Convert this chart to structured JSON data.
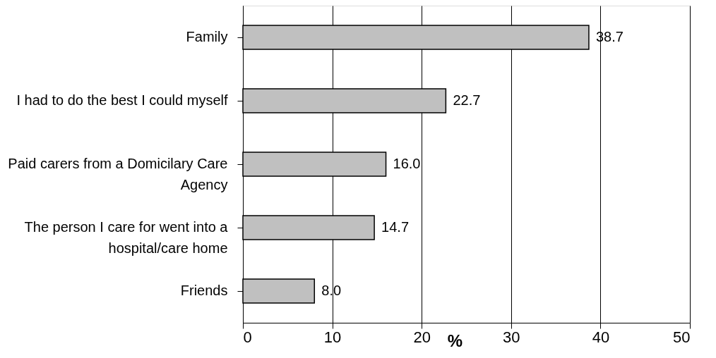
{
  "chart_data": {
    "type": "bar",
    "orientation": "horizontal",
    "xlabel": "%",
    "categories": [
      "Family",
      "I had to do the best I could myself",
      "Paid carers from a Domicilary Care Agency",
      "The person I care for went into a hospital/care home",
      "Friends"
    ],
    "values": [
      38.7,
      22.7,
      16.0,
      14.7,
      8.0
    ],
    "value_labels": [
      "38.7",
      "22.7",
      "16.0",
      "14.7",
      "8.0"
    ],
    "color": "#c0c0c0",
    "xlim": [
      0,
      50
    ],
    "xticks": [
      0,
      10,
      20,
      30,
      40,
      50
    ],
    "grid": "x"
  }
}
